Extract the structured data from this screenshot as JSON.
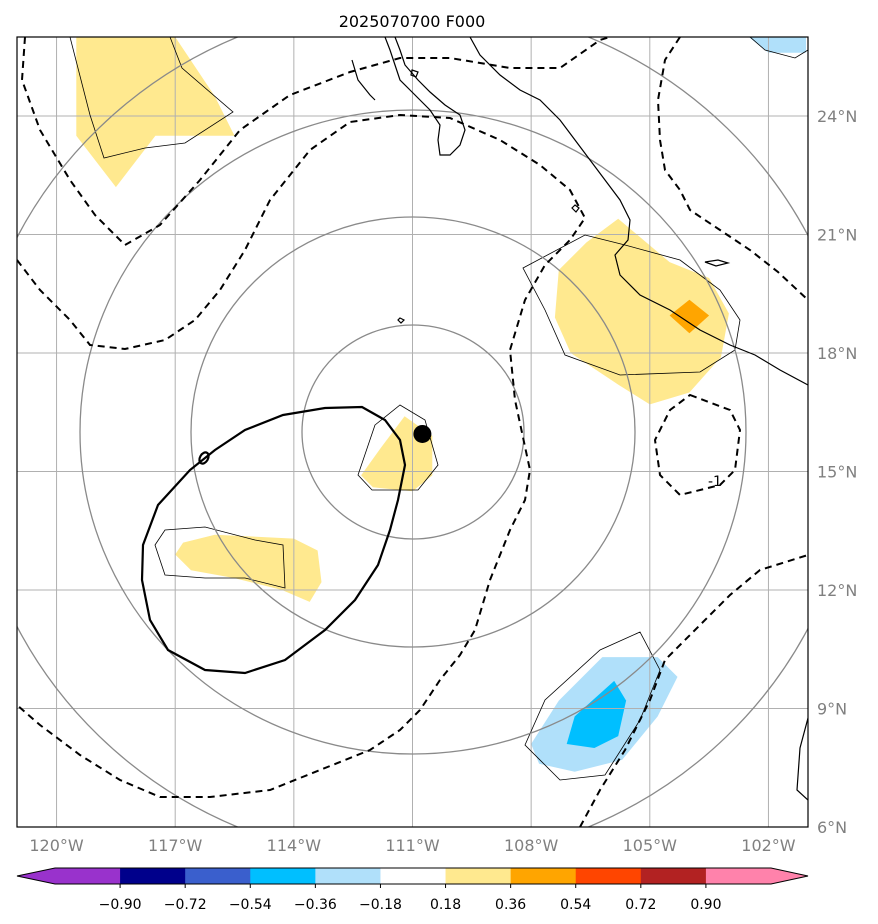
{
  "chart_data": {
    "type": "heatmap",
    "title": "2025070700 F000",
    "projection": "map",
    "lon_range": [
      -121,
      -101
    ],
    "lat_range": [
      6,
      26
    ],
    "x_ticks": [
      {
        "value": -120,
        "label": "120°W"
      },
      {
        "value": -117,
        "label": "117°W"
      },
      {
        "value": -114,
        "label": "114°W"
      },
      {
        "value": -111,
        "label": "111°W"
      },
      {
        "value": -108,
        "label": "108°W"
      },
      {
        "value": -105,
        "label": "105°W"
      },
      {
        "value": -102,
        "label": "102°W"
      }
    ],
    "y_ticks": [
      {
        "value": 6,
        "label": "6°N"
      },
      {
        "value": 9,
        "label": "9°N"
      },
      {
        "value": 12,
        "label": "12°N"
      },
      {
        "value": 15,
        "label": "15°N"
      },
      {
        "value": 18,
        "label": "18°N"
      },
      {
        "value": 21,
        "label": "21°N"
      },
      {
        "value": 24,
        "label": "24°N"
      }
    ],
    "grid": true,
    "center_marker": {
      "lon": -110.75,
      "lat": 15.95
    },
    "colorbar": {
      "orientation": "horizontal",
      "extend": "both",
      "ticks": [
        "−0.90",
        "−0.72",
        "−0.54",
        "−0.36",
        "−0.18",
        "0.18",
        "0.36",
        "0.54",
        "0.72",
        "0.90"
      ],
      "colors": [
        "#9932cc",
        "#00008b",
        "#3a5fcd",
        "#00bfff",
        "#b0e0fa",
        "#ffffff",
        "#ffe98f",
        "#ffa500",
        "#ff4500",
        "#b22222",
        "#ff82ab"
      ]
    },
    "shaded_regions": [
      {
        "level": 0.18,
        "color": "#ffe98f",
        "points": [
          [
            -119.5,
            26
          ],
          [
            -117,
            26
          ],
          [
            -116,
            24.5
          ],
          [
            -115.5,
            23.5
          ],
          [
            -117.5,
            23.5
          ],
          [
            -118.5,
            22.2
          ],
          [
            -119.5,
            23.5
          ]
        ]
      },
      {
        "level": 0.18,
        "color": "#ffe98f",
        "points": [
          [
            -111.8,
            15.6
          ],
          [
            -111.2,
            16.4
          ],
          [
            -110.5,
            15.9
          ],
          [
            -110.5,
            14.9
          ],
          [
            -111.0,
            14.5
          ],
          [
            -112.0,
            14.6
          ],
          [
            -112.3,
            14.9
          ]
        ]
      },
      {
        "level": 0.18,
        "color": "#ffe98f",
        "points": [
          [
            -116.8,
            13.2
          ],
          [
            -116,
            13.4
          ],
          [
            -114,
            13.3
          ],
          [
            -113.4,
            13.0
          ],
          [
            -113.3,
            12.2
          ],
          [
            -113.6,
            11.7
          ],
          [
            -114.3,
            12.0
          ],
          [
            -115.5,
            12.3
          ],
          [
            -116.6,
            12.5
          ],
          [
            -117,
            12.9
          ]
        ]
      },
      {
        "level": 0.18,
        "color": "#ffe98f",
        "points": [
          [
            -105.8,
            21.4
          ],
          [
            -104.5,
            20.3
          ],
          [
            -103.5,
            19.9
          ],
          [
            -103.0,
            19.0
          ],
          [
            -103.2,
            17.9
          ],
          [
            -104.0,
            17.0
          ],
          [
            -105.0,
            16.7
          ],
          [
            -105.8,
            17.2
          ],
          [
            -107.0,
            18.0
          ],
          [
            -107.4,
            18.9
          ],
          [
            -107.3,
            20.1
          ],
          [
            -106.6,
            20.8
          ]
        ]
      },
      {
        "level": 0.36,
        "color": "#ffa500",
        "points": [
          [
            -104.0,
            19.35
          ],
          [
            -103.5,
            18.95
          ],
          [
            -104.0,
            18.5
          ],
          [
            -104.5,
            18.95
          ]
        ]
      },
      {
        "level": -0.18,
        "color": "#b0e0fa",
        "points": [
          [
            -106.2,
            10.3
          ],
          [
            -104.8,
            10.3
          ],
          [
            -104.3,
            9.8
          ],
          [
            -104.8,
            8.8
          ],
          [
            -105.7,
            7.7
          ],
          [
            -106.9,
            7.4
          ],
          [
            -107.8,
            7.6
          ],
          [
            -108.0,
            8.1
          ],
          [
            -107.3,
            9.2
          ]
        ]
      },
      {
        "level": -0.36,
        "color": "#00bfff",
        "points": [
          [
            -105.9,
            9.7
          ],
          [
            -105.6,
            9.2
          ],
          [
            -105.8,
            8.3
          ],
          [
            -106.4,
            8.0
          ],
          [
            -107.1,
            8.1
          ],
          [
            -106.9,
            8.8
          ]
        ]
      },
      {
        "level": -0.18,
        "color": "#b0e0fa",
        "points": [
          [
            -102.5,
            26
          ],
          [
            -101.05,
            26
          ],
          [
            -101.05,
            25.6
          ],
          [
            -102.0,
            25.6
          ]
        ]
      }
    ],
    "dashed_contour_annotation": "-1",
    "annotations": [
      "-1"
    ]
  }
}
